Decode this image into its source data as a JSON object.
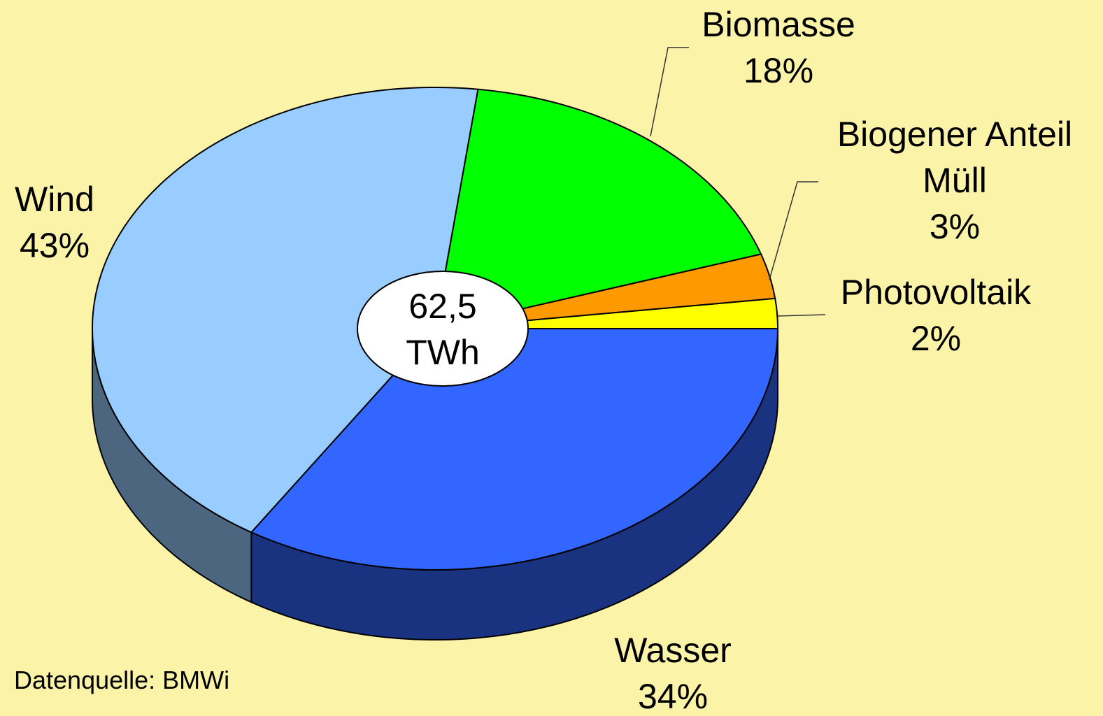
{
  "chart_data": {
    "type": "pie",
    "categories": [
      "Photovoltaik",
      "Biogener Anteil Müll",
      "Biomasse",
      "Wind",
      "Wasser"
    ],
    "values": [
      2,
      3,
      18,
      43,
      34
    ],
    "value_labels": [
      "2%",
      "3%",
      "18%",
      "43%",
      "34%"
    ],
    "colors": [
      "#ffff00",
      "#ff9900",
      "#00ff00",
      "#99ccff",
      "#3366ff"
    ],
    "center_label": "62,5 TWh",
    "source": "Datenquelle: BMWi"
  }
}
